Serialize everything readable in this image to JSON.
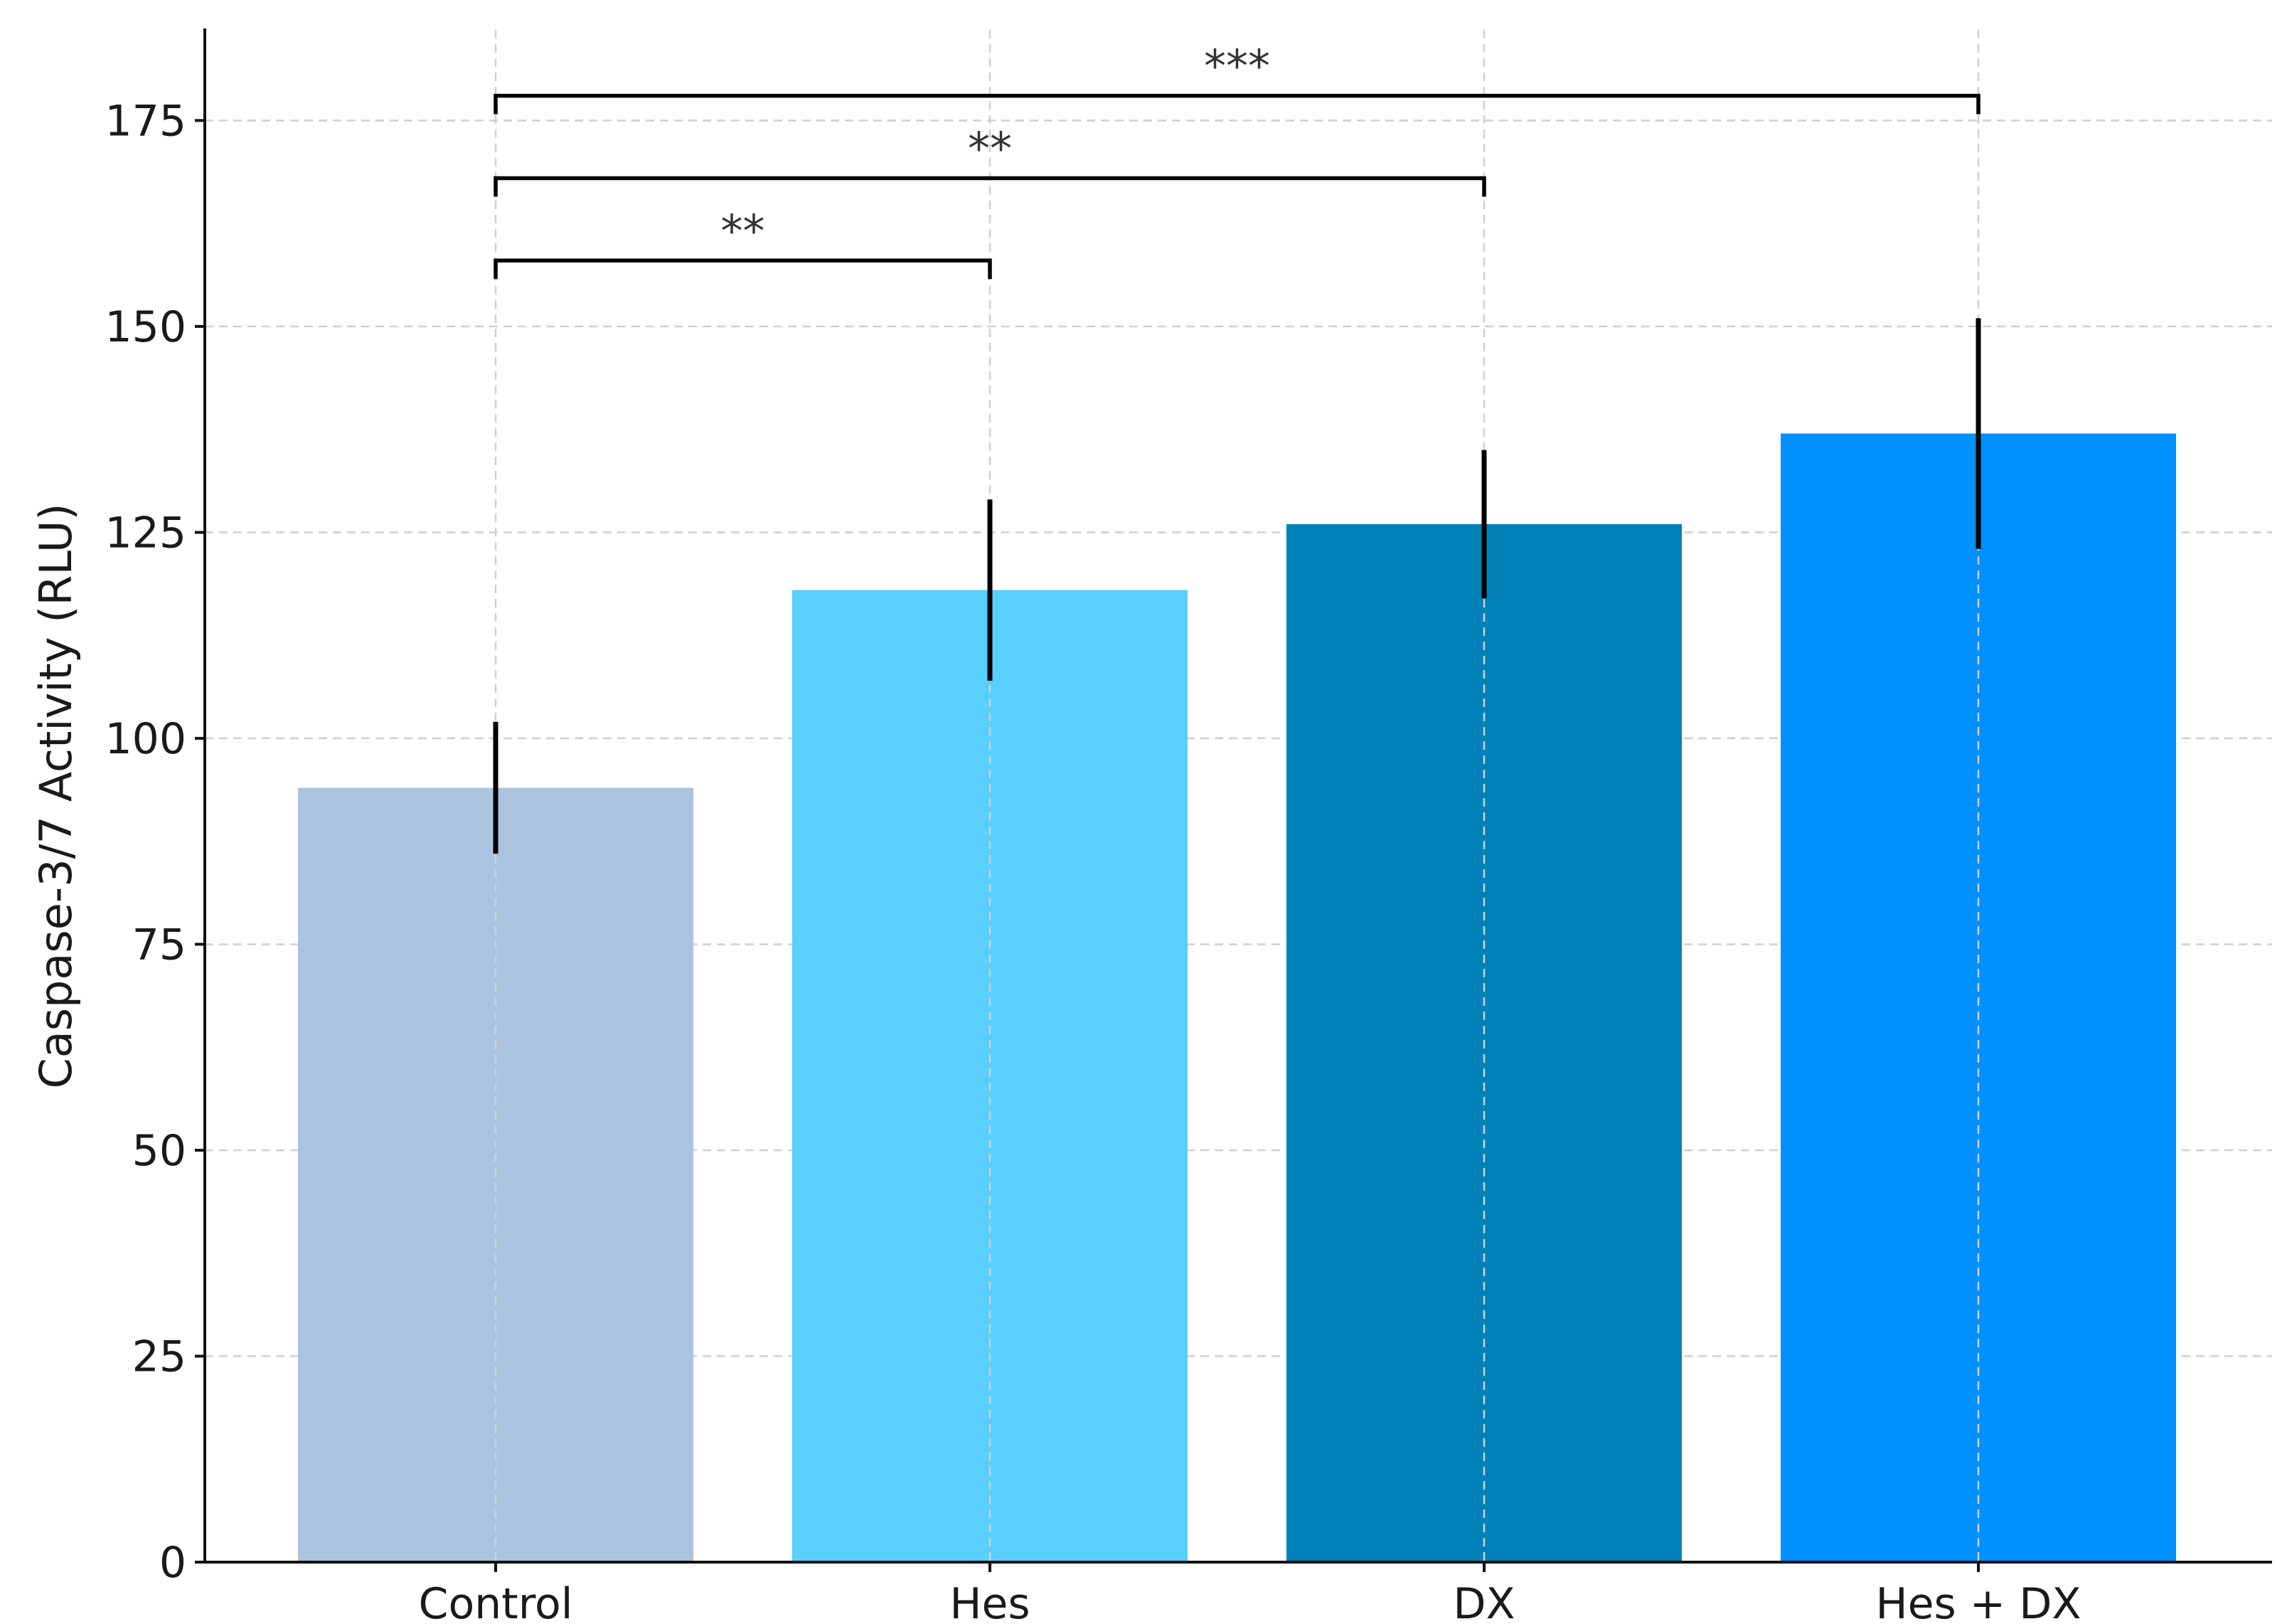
{
  "chart_data": {
    "type": "bar",
    "title": "",
    "xlabel": "",
    "ylabel": "Caspase-3/7 Activity (RLU)",
    "categories": [
      "Control",
      "Hes",
      "DX",
      "Hes + DX"
    ],
    "values": [
      94,
      118,
      126,
      137
    ],
    "error": [
      8,
      11,
      9,
      14
    ],
    "colors": [
      "#aac4e0",
      "#58cffc",
      "#0082b8",
      "#0090ff"
    ],
    "ylim": [
      0,
      186
    ],
    "yticks": [
      0,
      25,
      50,
      75,
      100,
      125,
      150,
      175
    ],
    "grid": true,
    "significance": [
      {
        "from": "Control",
        "to": "Hes",
        "y": 158,
        "label": "**"
      },
      {
        "from": "Control",
        "to": "DX",
        "y": 168,
        "label": "**"
      },
      {
        "from": "Control",
        "to": "Hes + DX",
        "y": 178,
        "label": "***"
      }
    ]
  }
}
